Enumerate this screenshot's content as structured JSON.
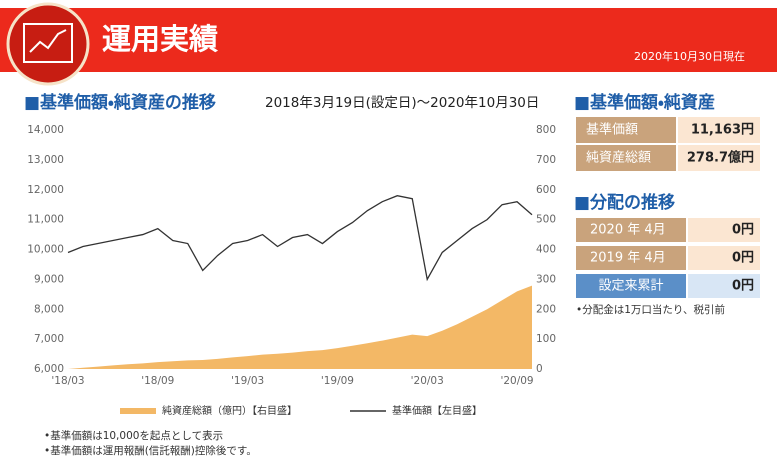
{
  "header": {
    "title": "運用実績",
    "as_of": "2020年10月30日現在"
  },
  "chart_data": {
    "type": "line",
    "title": "■基準価額・純資産の推移",
    "subtitle": "2018年3月19日(設定日)～2020年10月30日",
    "x": [
      "2018-03",
      "2018-04",
      "2018-05",
      "2018-06",
      "2018-07",
      "2018-08",
      "2018-09",
      "2018-10",
      "2018-11",
      "2018-12",
      "2019-01",
      "2019-02",
      "2019-03",
      "2019-04",
      "2019-05",
      "2019-06",
      "2019-07",
      "2019-08",
      "2019-09",
      "2019-10",
      "2019-11",
      "2019-12",
      "2020-01",
      "2020-02",
      "2020-03",
      "2020-04",
      "2020-05",
      "2020-06",
      "2020-07",
      "2020-08",
      "2020-09",
      "2020-10"
    ],
    "xticks": [
      {
        "value": "2018-03",
        "label": "'18/03"
      },
      {
        "value": "2018-09",
        "label": "'18/09"
      },
      {
        "value": "2019-03",
        "label": "'19/03"
      },
      {
        "value": "2019-09",
        "label": "'19/09"
      },
      {
        "value": "2020-03",
        "label": "'20/03"
      },
      {
        "value": "2020-09",
        "label": "'20/09"
      }
    ],
    "ylim": [
      6000,
      14000
    ],
    "yticks": [
      {
        "value": 6000,
        "label": "6,000"
      },
      {
        "value": 7000,
        "label": "7,000"
      },
      {
        "value": 8000,
        "label": "8,000"
      },
      {
        "value": 9000,
        "label": "9,000"
      },
      {
        "value": 10000,
        "label": "10,000"
      },
      {
        "value": 11000,
        "label": "11,000"
      },
      {
        "value": 12000,
        "label": "12,000"
      },
      {
        "value": 13000,
        "label": "13,000"
      },
      {
        "value": 14000,
        "label": "14,000"
      }
    ],
    "y2lim": [
      0,
      800
    ],
    "y2ticks": [
      0,
      100,
      200,
      300,
      400,
      500,
      600,
      700,
      800
    ],
    "grid": false,
    "series": [
      {
        "name": "純資産総額（億円）【右目盛】",
        "type": "area",
        "axis": "y2",
        "color": "#f3b866",
        "values": [
          0,
          4,
          8,
          12,
          16,
          19,
          23,
          26,
          29,
          30,
          34,
          39,
          43,
          48,
          51,
          55,
          60,
          63,
          70,
          78,
          86,
          95,
          105,
          115,
          110,
          128,
          150,
          175,
          200,
          230,
          260,
          279
        ]
      },
      {
        "name": "基準価額【左目盛】",
        "type": "line",
        "color": "#333333",
        "values": [
          9900,
          10100,
          10200,
          10300,
          10400,
          10500,
          10700,
          10300,
          10200,
          9300,
          9800,
          10200,
          10300,
          10500,
          10100,
          10400,
          10500,
          10200,
          10600,
          10900,
          11300,
          11600,
          11800,
          11700,
          9000,
          9900,
          10300,
          10700,
          11000,
          11500,
          11600,
          11163
        ]
      }
    ]
  },
  "nav_panel": {
    "title": "■基準価額・純資産",
    "rows": [
      [
        "基準価額",
        "11,163円"
      ],
      [
        "純資産総額",
        "278.7億円"
      ]
    ]
  },
  "distribution_panel": {
    "title": "■分配の推移",
    "rows": [
      [
        "2020 年 4月",
        "0円"
      ],
      [
        "2019 年 4月",
        "0円"
      ],
      [
        "設定来累計",
        "0円"
      ]
    ],
    "note": "•分配金は1万口当たり、税引前"
  },
  "notes": [
    "•基準価額は10,000を起点として表示",
    "•基準価額は運用報酬(信託報酬)控除後です。"
  ]
}
